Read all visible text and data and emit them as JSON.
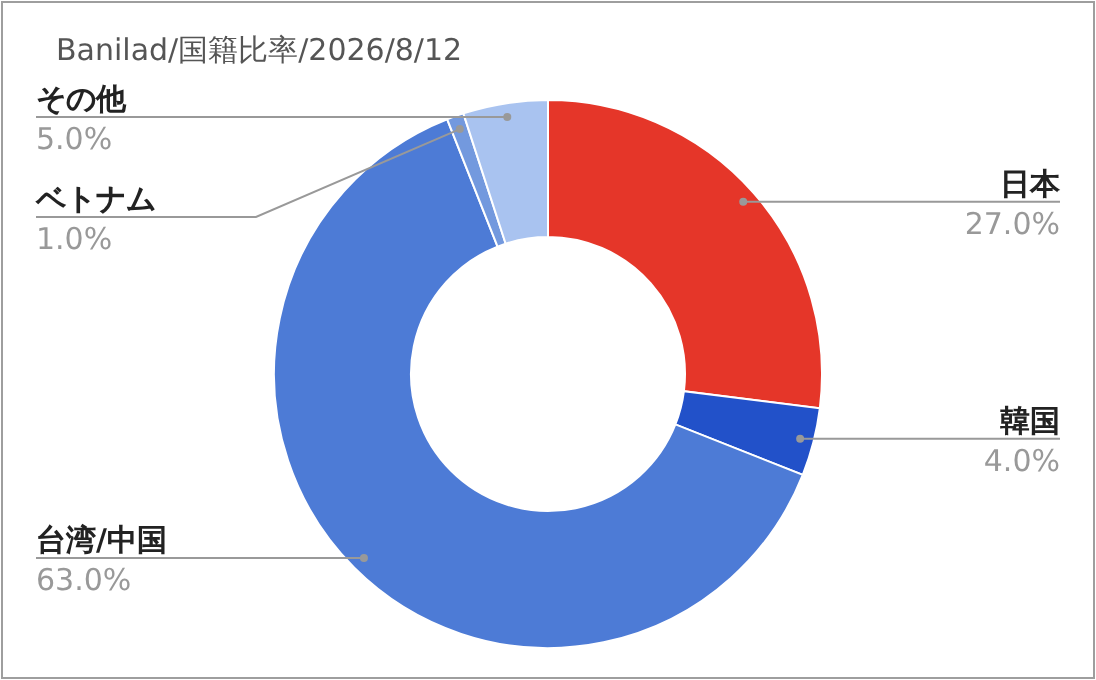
{
  "chart_data": {
    "type": "donut",
    "title": "Banilad/国籍比率/2026/8/12",
    "categories": [
      "日本",
      "韓国",
      "台湾/中国",
      "ベトナム",
      "その他"
    ],
    "values": [
      27.0,
      4.0,
      63.0,
      1.0,
      5.0
    ],
    "colors": [
      "#e53629",
      "#2251c9",
      "#4d7bd6",
      "#7399de",
      "#a9c3f0"
    ],
    "value_labels": [
      "27.0%",
      "4.0%",
      "63.0%",
      "1.0%",
      "5.0%"
    ]
  }
}
